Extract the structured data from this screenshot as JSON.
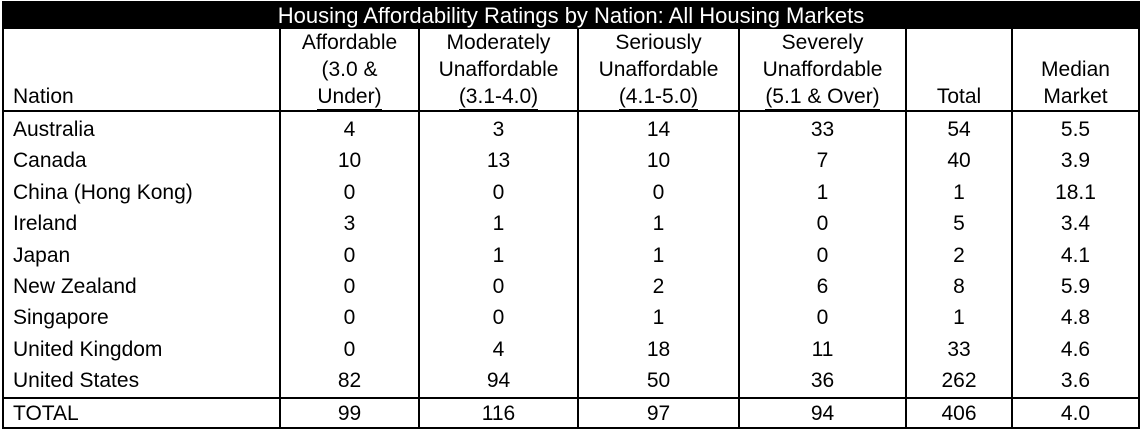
{
  "title": "Housing Affordability Ratings by Nation: All Housing Markets",
  "columns": {
    "nation": "Nation",
    "affordable": {
      "line1": "Affordable",
      "line2": "(3.0 &",
      "line3": "Under)"
    },
    "moderately": {
      "line1": "Moderately",
      "line2": "Unaffordable",
      "line3": "(3.1-4.0)"
    },
    "seriously": {
      "line1": "Seriously",
      "line2": "Unaffordable",
      "line3": "(4.1-5.0)"
    },
    "severely": {
      "line1": "Severely",
      "line2": "Unaffordable",
      "line3": "(5.1 & Over)"
    },
    "total": "Total",
    "median": {
      "line1": "Median",
      "line2": "Market"
    }
  },
  "rows": [
    {
      "nation": "Australia",
      "affordable": "4",
      "moderately": "3",
      "seriously": "14",
      "severely": "33",
      "total": "54",
      "median": "5.5"
    },
    {
      "nation": "Canada",
      "affordable": "10",
      "moderately": "13",
      "seriously": "10",
      "severely": "7",
      "total": "40",
      "median": "3.9"
    },
    {
      "nation": "China (Hong Kong)",
      "affordable": "0",
      "moderately": "0",
      "seriously": "0",
      "severely": "1",
      "total": "1",
      "median": "18.1"
    },
    {
      "nation": "Ireland",
      "affordable": "3",
      "moderately": "1",
      "seriously": "1",
      "severely": "0",
      "total": "5",
      "median": "3.4"
    },
    {
      "nation": "Japan",
      "affordable": "0",
      "moderately": "1",
      "seriously": "1",
      "severely": "0",
      "total": "2",
      "median": "4.1"
    },
    {
      "nation": "New Zealand",
      "affordable": "0",
      "moderately": "0",
      "seriously": "2",
      "severely": "6",
      "total": "8",
      "median": "5.9"
    },
    {
      "nation": "Singapore",
      "affordable": "0",
      "moderately": "0",
      "seriously": "1",
      "severely": "0",
      "total": "1",
      "median": "4.8"
    },
    {
      "nation": "United Kingdom",
      "affordable": "0",
      "moderately": "4",
      "seriously": "18",
      "severely": "11",
      "total": "33",
      "median": "4.6"
    },
    {
      "nation": "United States",
      "affordable": "82",
      "moderately": "94",
      "seriously": "50",
      "severely": "36",
      "total": "262",
      "median": "3.6"
    }
  ],
  "totals": {
    "nation": "TOTAL",
    "affordable": "99",
    "moderately": "116",
    "seriously": "97",
    "severely": "94",
    "total": "406",
    "median": "4.0"
  }
}
